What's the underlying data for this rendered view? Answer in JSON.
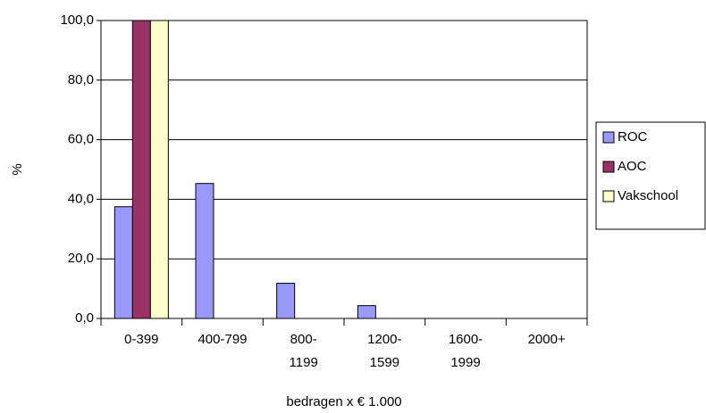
{
  "chart_data": {
    "type": "bar",
    "categories": [
      "0-399",
      "400-799",
      "800-\n1199",
      "1200-\n1599",
      "1600-\n1999",
      "2000+"
    ],
    "series": [
      {
        "name": "ROC",
        "color": "#9999ff",
        "values": [
          37.5,
          45.3,
          11.8,
          4.3,
          0,
          0
        ]
      },
      {
        "name": "AOC",
        "color": "#993366",
        "values": [
          100,
          0,
          0,
          0,
          0,
          0
        ]
      },
      {
        "name": "Vakschool",
        "color": "#ffffcc",
        "values": [
          100,
          0,
          0,
          0,
          0,
          0
        ]
      }
    ],
    "ylabel": "%",
    "xlabel": "bedragen x € 1.000",
    "ylim": [
      0,
      100
    ],
    "yticks": [
      {
        "value": 0,
        "label": "0,0"
      },
      {
        "value": 20,
        "label": "20,0"
      },
      {
        "value": 40,
        "label": "40,0"
      },
      {
        "value": 60,
        "label": "60,0"
      },
      {
        "value": 80,
        "label": "80,0"
      },
      {
        "value": 100,
        "label": "100,0"
      }
    ],
    "grid": true,
    "legend": "right"
  }
}
